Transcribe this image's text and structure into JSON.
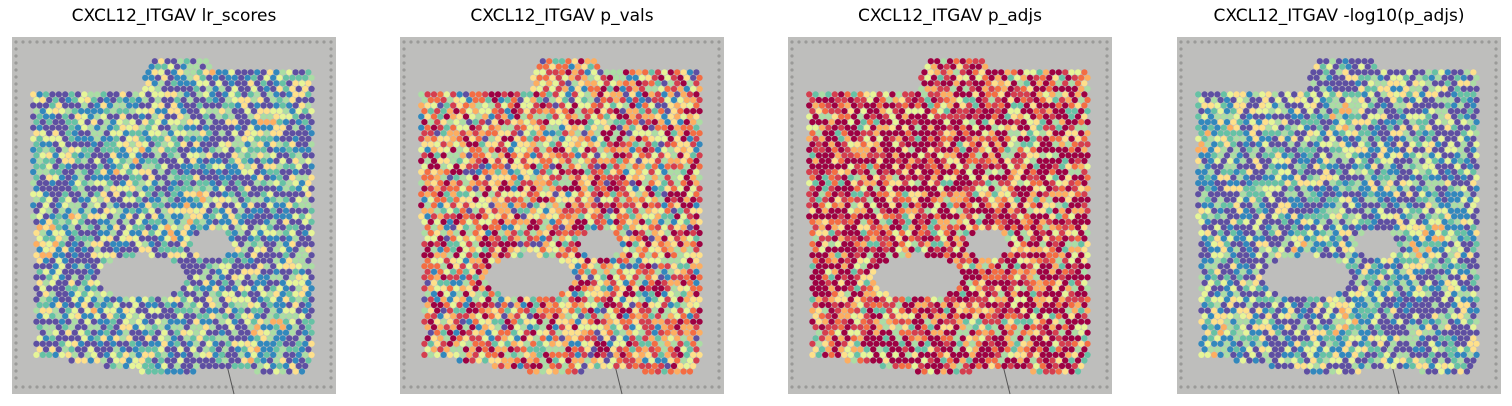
{
  "panels": [
    {
      "title": "CXCL12_ITGAV lr_scores"
    },
    {
      "title": "CXCL12_ITGAV p_vals"
    },
    {
      "title": "CXCL12_ITGAV p_adjs"
    },
    {
      "title": "CXCL12_ITGAV -log10(p_adjs)"
    }
  ]
}
